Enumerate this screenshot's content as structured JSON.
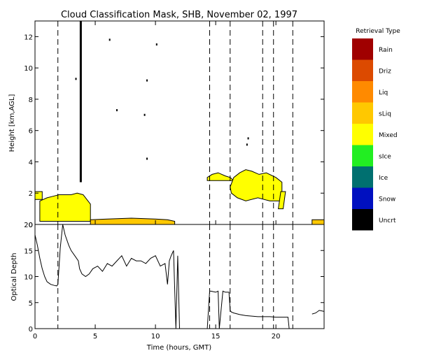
{
  "chart_data": [
    {
      "type": "heatmap",
      "title": "Cloud Classification Mask, SHB, November 02, 1997",
      "ylabel": "Height [km,AGL]",
      "xlim": [
        0,
        24
      ],
      "ylim": [
        0,
        13
      ],
      "yticks": [
        0,
        2,
        4,
        6,
        8,
        10,
        12
      ],
      "legend": {
        "title": "Retrieval Type",
        "position": "right",
        "entries": [
          {
            "label": "Rain",
            "color": "#a00000"
          },
          {
            "label": "Driz",
            "color": "#dc4a00"
          },
          {
            "label": "Liq",
            "color": "#ff8a00"
          },
          {
            "label": "sLiq",
            "color": "#ffc800"
          },
          {
            "label": "Mixed",
            "color": "#ffff00"
          },
          {
            "label": "sIce",
            "color": "#22ee22"
          },
          {
            "label": "Ice",
            "color": "#007070"
          },
          {
            "label": "Snow",
            "color": "#0010c0"
          },
          {
            "label": "Uncrt",
            "color": "#000000"
          }
        ]
      },
      "cloud_regions": [
        {
          "type": "Mixed",
          "x": [
            0.4,
            0.4,
            1.0,
            1.5,
            2.0,
            2.5,
            3.0,
            3.5,
            4.0,
            4.3,
            4.6,
            4.6,
            0.4
          ],
          "y": [
            0.2,
            1.5,
            1.7,
            1.8,
            1.9,
            1.9,
            1.9,
            2.0,
            1.9,
            1.6,
            1.3,
            0.2,
            0.2
          ]
        },
        {
          "type": "Mixed",
          "x": [
            0.0,
            0.6,
            0.6,
            0.0
          ],
          "y": [
            1.6,
            1.6,
            2.1,
            2.1
          ]
        },
        {
          "type": "sLiq",
          "x": [
            4.6,
            6.0,
            8.0,
            10.0,
            11.0,
            11.6,
            11.6,
            4.6
          ],
          "y": [
            0.3,
            0.35,
            0.4,
            0.35,
            0.3,
            0.2,
            0.0,
            0.0
          ]
        },
        {
          "type": "Mixed",
          "x": [
            14.3,
            14.7,
            15.2,
            15.8,
            16.2,
            16.5,
            14.3
          ],
          "y": [
            3.0,
            3.2,
            3.3,
            3.1,
            3.0,
            2.8,
            2.8
          ]
        },
        {
          "type": "Mixed",
          "x": [
            16.2,
            16.5,
            17.0,
            17.5,
            18.0,
            18.6,
            19.2,
            20.0,
            20.5,
            20.5,
            19.5,
            18.5,
            17.5,
            16.8,
            16.3
          ],
          "y": [
            2.4,
            3.0,
            3.3,
            3.5,
            3.4,
            3.2,
            3.3,
            3.0,
            2.7,
            1.5,
            1.5,
            1.7,
            1.5,
            1.7,
            2.0
          ]
        },
        {
          "type": "Mixed",
          "x": [
            20.2,
            20.6,
            20.8,
            20.4
          ],
          "y": [
            1.0,
            1.0,
            2.1,
            2.1
          ]
        },
        {
          "type": "sLiq",
          "x": [
            23.0,
            24.0,
            24.0,
            23.0
          ],
          "y": [
            0.0,
            0.0,
            0.3,
            0.3
          ]
        }
      ],
      "uncertain_column": {
        "x": 3.8,
        "ymin": 2.7,
        "ymax": 13.0
      },
      "scattered_points": [
        {
          "x": 3.4,
          "y": 9.3
        },
        {
          "x": 6.2,
          "y": 11.8
        },
        {
          "x": 6.8,
          "y": 7.3
        },
        {
          "x": 9.1,
          "y": 7.0
        },
        {
          "x": 9.3,
          "y": 9.2
        },
        {
          "x": 10.1,
          "y": 11.5
        },
        {
          "x": 9.3,
          "y": 4.2
        },
        {
          "x": 17.6,
          "y": 5.1
        },
        {
          "x": 17.7,
          "y": 5.5
        }
      ],
      "event_lines_x": [
        1.9,
        14.5,
        16.2,
        18.9,
        19.8,
        21.4
      ]
    },
    {
      "type": "line",
      "title": "",
      "xlabel": "Time (hours, GMT)",
      "ylabel": "Optical Depth",
      "xlim": [
        0,
        24
      ],
      "ylim": [
        0,
        20
      ],
      "xticks": [
        0,
        5,
        10,
        15,
        20
      ],
      "yticks": [
        0,
        5,
        10,
        15,
        20
      ],
      "grid": false,
      "series": [
        {
          "name": "",
          "x": [
            0.0,
            0.2,
            0.4,
            0.6,
            0.8,
            1.0,
            1.3,
            1.6,
            1.8,
            1.9,
            2.0,
            2.1,
            2.3,
            2.5,
            2.8,
            3.0,
            3.3,
            3.6,
            3.7,
            3.9,
            4.2,
            4.5,
            4.8,
            5.2,
            5.6,
            6.0,
            6.4,
            6.8,
            7.2,
            7.6,
            8.0,
            8.4,
            8.8,
            9.2,
            9.6,
            10.0,
            10.4,
            10.8,
            11.0,
            11.15,
            11.3,
            11.5,
            11.7,
            11.85,
            12.0,
            14.3,
            14.5,
            14.6,
            15.0,
            15.2,
            15.3,
            15.6,
            15.8,
            16.1,
            16.2,
            16.3,
            16.5,
            17.0,
            17.5,
            18.0,
            18.5,
            19.0,
            19.5,
            20.0,
            20.5,
            21.0,
            21.1,
            23.0,
            23.3,
            23.6,
            24.0
          ],
          "y": [
            18.0,
            16.0,
            13.5,
            11.5,
            10.0,
            9.0,
            8.5,
            8.3,
            8.2,
            8.5,
            12.0,
            15.5,
            20.0,
            18.0,
            16.0,
            15.0,
            14.0,
            13.0,
            11.5,
            10.5,
            10.0,
            10.5,
            11.5,
            12.0,
            11.0,
            12.5,
            12.0,
            13.0,
            14.0,
            12.0,
            13.5,
            13.0,
            13.0,
            12.5,
            13.5,
            14.0,
            12.0,
            12.5,
            8.5,
            13.0,
            14.0,
            15.0,
            0.0,
            14.0,
            0.0,
            0.0,
            7.2,
            7.2,
            7.0,
            7.2,
            0.0,
            7.2,
            7.0,
            7.0,
            3.5,
            3.2,
            3.0,
            2.7,
            2.5,
            2.4,
            2.3,
            2.3,
            2.3,
            2.2,
            2.2,
            2.2,
            0.0,
            2.8,
            3.0,
            3.5,
            3.3
          ]
        }
      ]
    }
  ]
}
